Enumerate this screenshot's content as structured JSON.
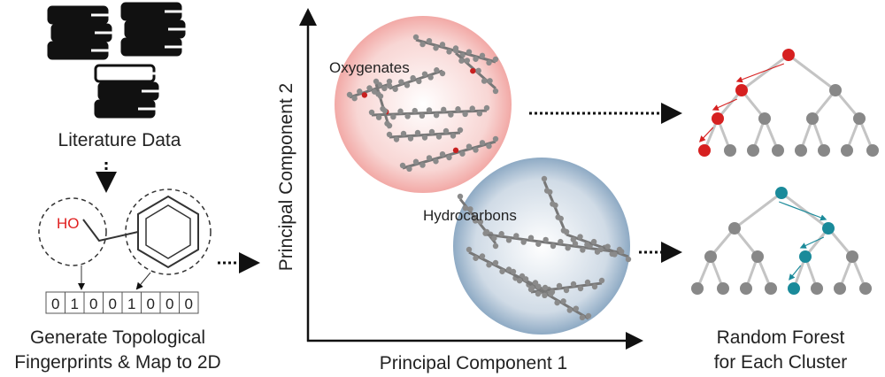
{
  "literature": {
    "label": "Literature Data"
  },
  "molecule": {
    "label": "HO"
  },
  "fingerprint": {
    "bits": [
      0,
      1,
      0,
      0,
      1,
      0,
      0,
      0
    ],
    "caption": [
      "Generate Topological",
      "Fingerprints & Map to 2D"
    ]
  },
  "plot": {
    "y_label": "Principal Component 2",
    "x_label": "Principal Component 1",
    "clusters": [
      {
        "label": "Oxygenates"
      },
      {
        "label": "Hydrocarbons"
      }
    ]
  },
  "forest": {
    "caption": [
      "Random Forest",
      "for Each Cluster"
    ]
  }
}
